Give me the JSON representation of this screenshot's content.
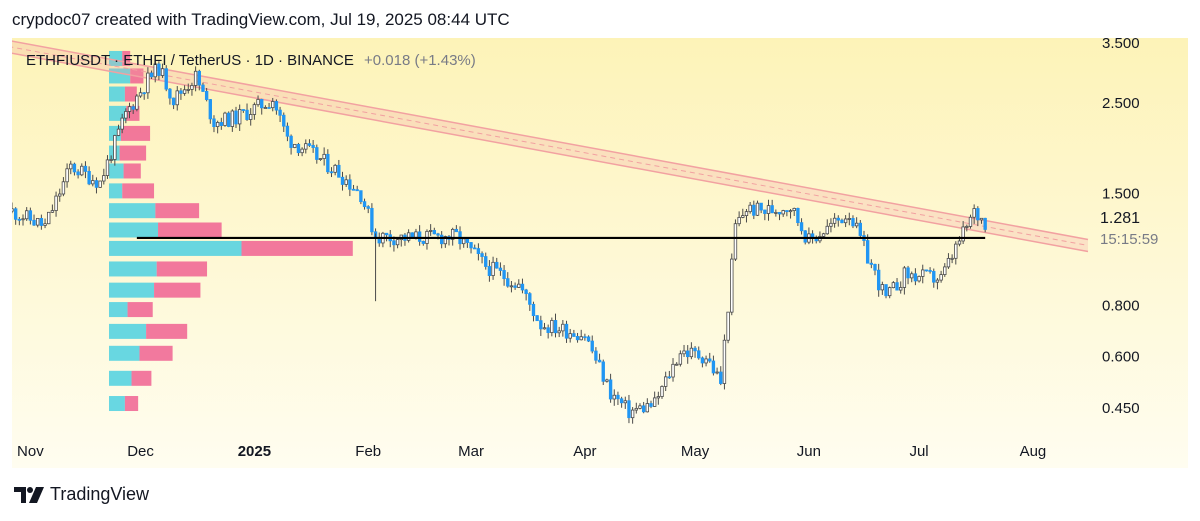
{
  "caption": "crypdoc07 created with TradingView.com, Jul 19, 2025 08:44 UTC",
  "legend": {
    "symbol": "ETHFIUSDT · ETHFI / TetherUS · 1D · BINANCE",
    "change": "+0.018 (+1.43%)"
  },
  "last_price": "1.281",
  "countdown": "15:15:59",
  "footer": {
    "brand": "TradingView"
  },
  "colors": {
    "up": "#26a69a",
    "down": "#2196f3",
    "wick": "#4a4a4a",
    "vp_up": "#4dd0e1",
    "vp_down": "#f06292",
    "channel": "#f2a1a1",
    "level": "#000000"
  },
  "chart_data": {
    "type": "candlestick",
    "timeframe": "1D",
    "y_scale": "log",
    "ylim": [
      0.38,
      3.6
    ],
    "x_range": [
      "2024-10-27",
      "2025-08-16"
    ],
    "y_ticks": [
      "3.500",
      "2.500",
      "1.500",
      "0.800",
      "0.600",
      "0.450"
    ],
    "x_ticks": [
      {
        "date": "2024-11-01",
        "label": "Nov"
      },
      {
        "date": "2024-12-01",
        "label": "Dec"
      },
      {
        "date": "2025-01-01",
        "label": "2025"
      },
      {
        "date": "2025-02-01",
        "label": "Feb"
      },
      {
        "date": "2025-03-01",
        "label": "Mar"
      },
      {
        "date": "2025-04-01",
        "label": "Apr"
      },
      {
        "date": "2025-05-01",
        "label": "May"
      },
      {
        "date": "2025-06-01",
        "label": "Jun"
      },
      {
        "date": "2025-07-01",
        "label": "Jul"
      },
      {
        "date": "2025-08-01",
        "label": "Aug"
      }
    ],
    "close_path": [
      [
        "2024-10-27",
        1.36
      ],
      [
        "2024-11-05",
        1.25
      ],
      [
        "2024-11-12",
        1.75
      ],
      [
        "2024-11-20",
        1.6
      ],
      [
        "2024-11-27",
        2.35
      ],
      [
        "2024-12-03",
        2.85
      ],
      [
        "2024-12-06",
        3.05
      ],
      [
        "2024-12-10",
        2.55
      ],
      [
        "2024-12-16",
        2.9
      ],
      [
        "2024-12-21",
        2.25
      ],
      [
        "2024-12-27",
        2.3
      ],
      [
        "2025-01-06",
        2.55
      ],
      [
        "2025-01-10",
        2.05
      ],
      [
        "2025-01-15",
        1.92
      ],
      [
        "2025-01-23",
        1.72
      ],
      [
        "2025-01-30",
        1.5
      ],
      [
        "2025-02-03",
        1.18
      ],
      [
        "2025-02-12",
        1.17
      ],
      [
        "2025-02-25",
        1.18
      ],
      [
        "2025-03-05",
        1.0
      ],
      [
        "2025-03-14",
        0.9
      ],
      [
        "2025-03-20",
        0.72
      ],
      [
        "2025-04-01",
        0.68
      ],
      [
        "2025-04-08",
        0.49
      ],
      [
        "2025-04-13",
        0.44
      ],
      [
        "2025-04-20",
        0.46
      ],
      [
        "2025-04-27",
        0.62
      ],
      [
        "2025-05-04",
        0.6
      ],
      [
        "2025-05-08",
        0.52
      ],
      [
        "2025-05-10",
        0.8
      ],
      [
        "2025-05-12",
        1.25
      ],
      [
        "2025-05-15",
        1.38
      ],
      [
        "2025-05-20",
        1.36
      ],
      [
        "2025-05-27",
        1.4
      ],
      [
        "2025-06-01",
        1.15
      ],
      [
        "2025-06-12",
        1.35
      ],
      [
        "2025-06-17",
        1.05
      ],
      [
        "2025-06-22",
        0.83
      ],
      [
        "2025-06-27",
        0.95
      ],
      [
        "2025-07-07",
        0.93
      ],
      [
        "2025-07-12",
        1.15
      ],
      [
        "2025-07-16",
        1.35
      ],
      [
        "2025-07-19",
        1.281
      ]
    ],
    "channel": {
      "upper": [
        [
          "2024-10-26",
          3.55
        ],
        [
          "2025-08-16",
          1.16
        ]
      ],
      "width_ratio": 1.07
    },
    "horizontal_level": {
      "value": 1.17,
      "from": "2024-11-30",
      "to": "2025-07-19"
    },
    "volume_profile": [
      {
        "price": 3.2,
        "up": 0.1,
        "down": 0.06
      },
      {
        "price": 2.9,
        "up": 0.16,
        "down": 0.1
      },
      {
        "price": 2.62,
        "up": 0.12,
        "down": 0.09
      },
      {
        "price": 2.35,
        "up": 0.13,
        "down": 0.1
      },
      {
        "price": 2.1,
        "up": 0.09,
        "down": 0.22
      },
      {
        "price": 1.88,
        "up": 0.08,
        "down": 0.2
      },
      {
        "price": 1.7,
        "up": 0.11,
        "down": 0.13
      },
      {
        "price": 1.52,
        "up": 0.1,
        "down": 0.24
      },
      {
        "price": 1.36,
        "up": 0.35,
        "down": 0.33
      },
      {
        "price": 1.22,
        "up": 0.37,
        "down": 0.48
      },
      {
        "price": 1.1,
        "up": 1.0,
        "down": 0.84
      },
      {
        "price": 0.98,
        "up": 0.36,
        "down": 0.38
      },
      {
        "price": 0.87,
        "up": 0.34,
        "down": 0.35
      },
      {
        "price": 0.78,
        "up": 0.14,
        "down": 0.19
      },
      {
        "price": 0.69,
        "up": 0.28,
        "down": 0.31
      },
      {
        "price": 0.61,
        "up": 0.23,
        "down": 0.25
      },
      {
        "price": 0.53,
        "up": 0.17,
        "down": 0.15
      },
      {
        "price": 0.46,
        "up": 0.12,
        "down": 0.1
      }
    ]
  }
}
